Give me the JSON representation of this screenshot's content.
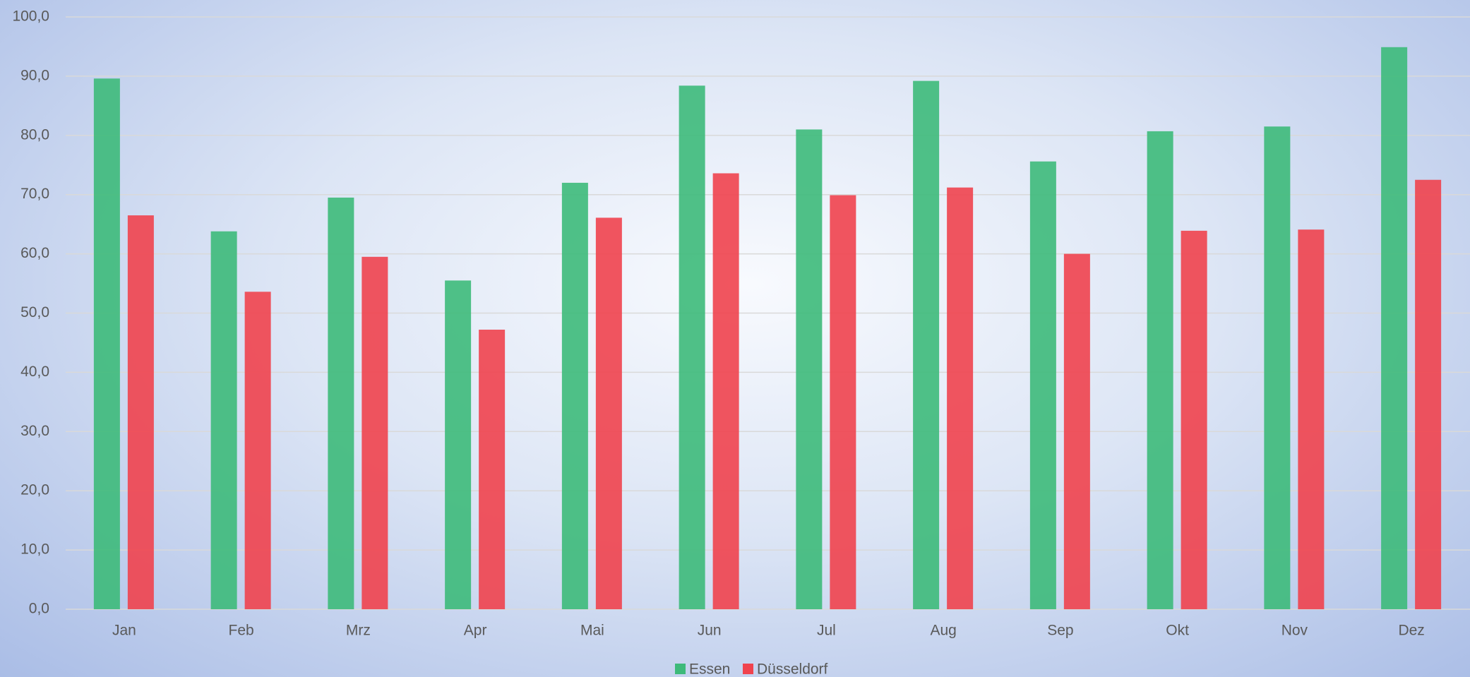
{
  "chart_data": {
    "type": "bar",
    "categories": [
      "Jan",
      "Feb",
      "Mrz",
      "Apr",
      "Mai",
      "Jun",
      "Jul",
      "Aug",
      "Sep",
      "Okt",
      "Nov",
      "Dez"
    ],
    "series": [
      {
        "name": "Essen",
        "color": "#3dba7a",
        "values": [
          89.6,
          63.8,
          69.5,
          55.5,
          72.0,
          88.4,
          81.0,
          89.2,
          75.6,
          80.7,
          81.5,
          94.9
        ]
      },
      {
        "name": "Düsseldorf",
        "color": "#f0434e",
        "values": [
          66.5,
          53.6,
          59.5,
          47.2,
          66.1,
          73.6,
          69.9,
          71.2,
          60.0,
          63.9,
          64.1,
          72.5
        ]
      }
    ],
    "ylim": [
      0,
      100
    ],
    "yticks": [
      {
        "value": 0,
        "label": "0,0"
      },
      {
        "value": 10,
        "label": "10,0"
      },
      {
        "value": 20,
        "label": "20,0"
      },
      {
        "value": 30,
        "label": "30,0"
      },
      {
        "value": 40,
        "label": "40,0"
      },
      {
        "value": 50,
        "label": "50,0"
      },
      {
        "value": 60,
        "label": "60,0"
      },
      {
        "value": 70,
        "label": "70,0"
      },
      {
        "value": 80,
        "label": "80,0"
      },
      {
        "value": 90,
        "label": "90,0"
      },
      {
        "value": 100,
        "label": "100,0"
      }
    ],
    "grid": true,
    "legend": "bottom"
  }
}
